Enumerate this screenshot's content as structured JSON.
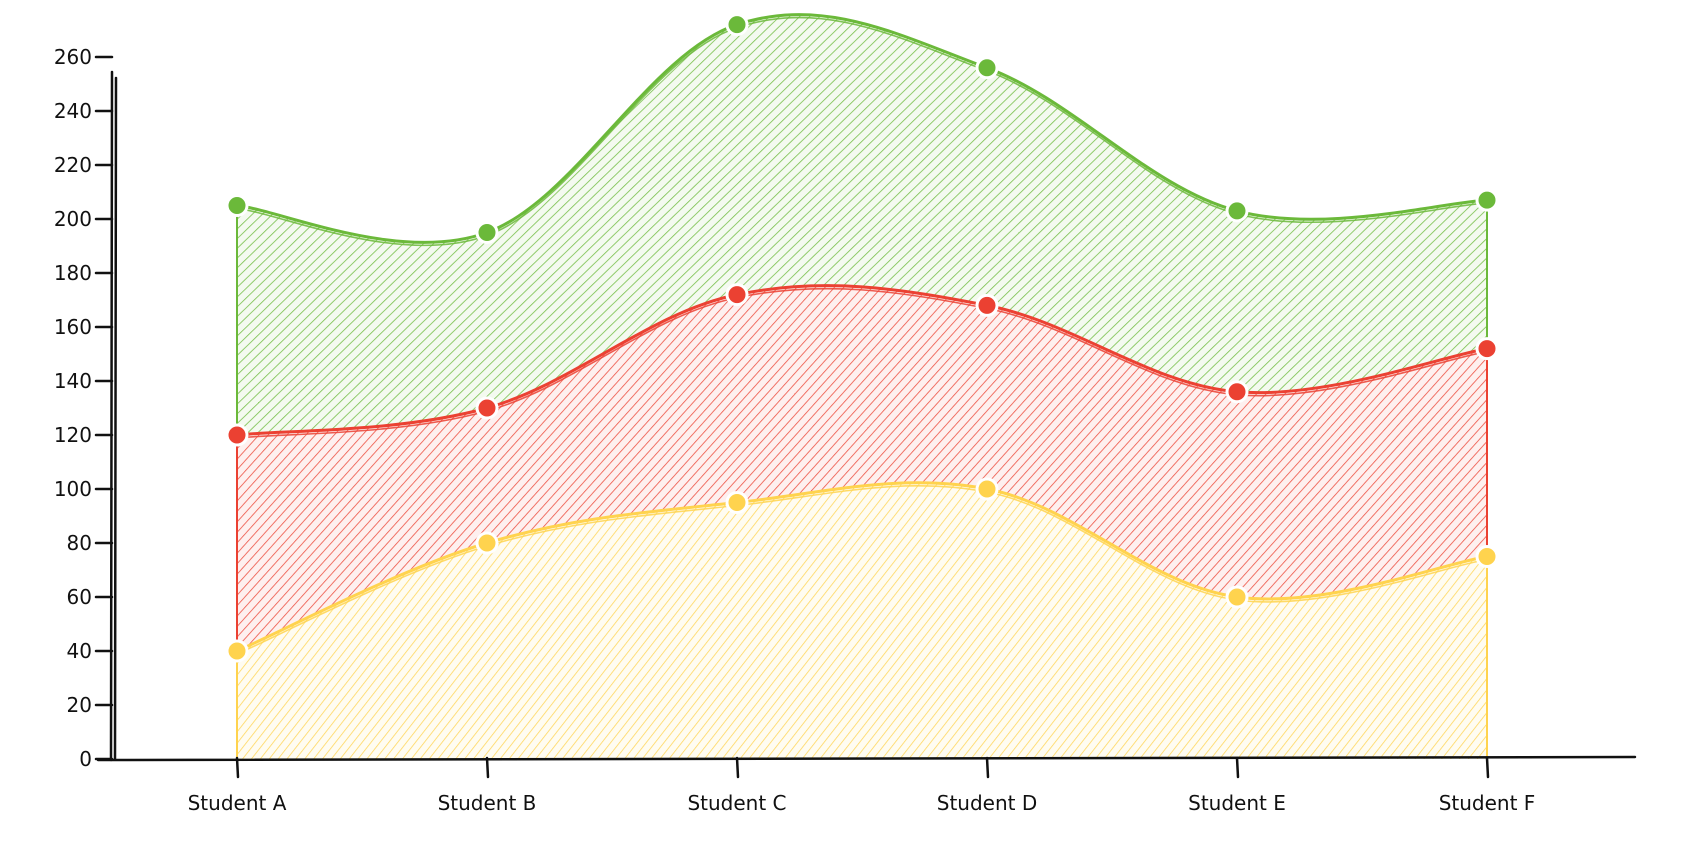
{
  "chart_data": {
    "type": "area",
    "stacked": true,
    "categories": [
      "Student A",
      "Student B",
      "Student C",
      "Student D",
      "Student E",
      "Student F"
    ],
    "series": [
      {
        "values": [
          40,
          80,
          95,
          100,
          60,
          75
        ],
        "color": "#FFD34E"
      },
      {
        "values": [
          80,
          50,
          77,
          68,
          76,
          77
        ],
        "color": "#EB4132"
      },
      {
        "values": [
          85,
          65,
          100,
          88,
          67,
          55
        ],
        "color": "#6BB93A"
      }
    ],
    "y_ticks": [
      0,
      20,
      40,
      60,
      80,
      100,
      120,
      140,
      160,
      180,
      200,
      220,
      240,
      260
    ],
    "ylim": [
      0,
      270
    ],
    "title": "",
    "xlabel": "",
    "ylabel": "",
    "grid": false,
    "legend": "none",
    "style": "hand-drawn hatched"
  }
}
